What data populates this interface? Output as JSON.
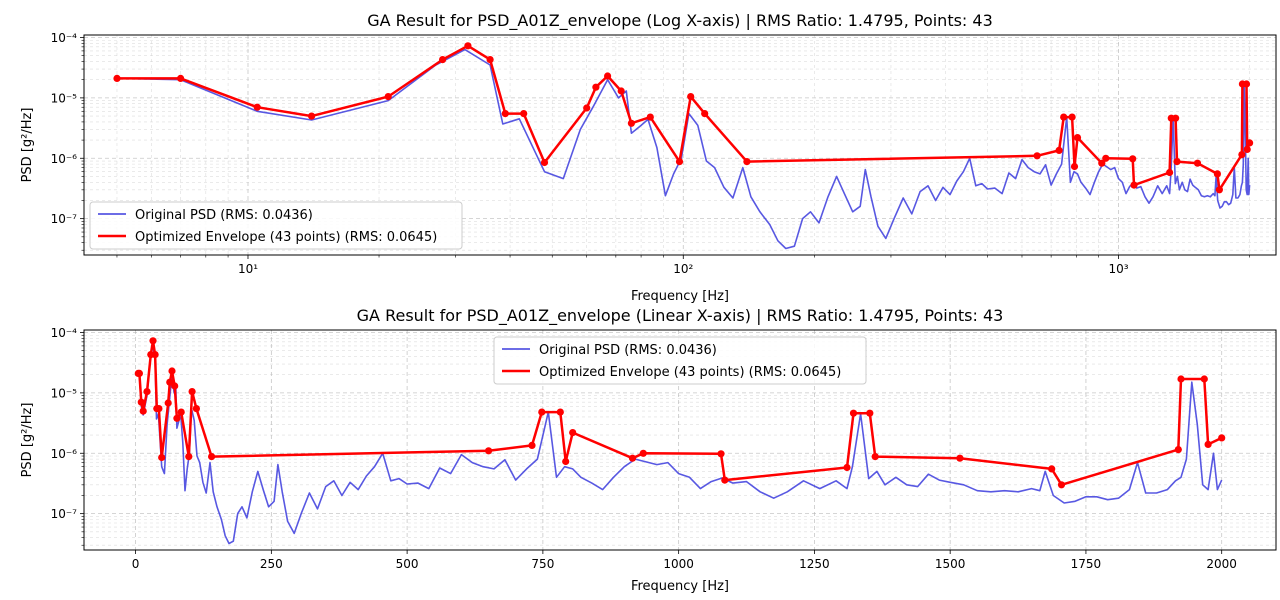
{
  "chart_data": [
    {
      "type": "line",
      "title": "GA Result for PSD_A01Z_envelope (Log X-axis) | RMS Ratio: 1.4795, Points: 43",
      "xlabel": "Frequency [Hz]",
      "ylabel": "PSD [g²/Hz]",
      "xscale": "log",
      "yscale": "log",
      "xlim": [
        4.2,
        2300
      ],
      "ylim": [
        2.5e-08,
        0.00011
      ],
      "x_tick_labels": [
        {
          "value": 10,
          "label": "10¹"
        },
        {
          "value": 100,
          "label": "10²"
        },
        {
          "value": 1000,
          "label": "10³"
        }
      ],
      "y_tick_labels": [
        {
          "value": 1e-07,
          "label": "10⁻⁷"
        },
        {
          "value": 1e-06,
          "label": "10⁻⁶"
        },
        {
          "value": 1e-05,
          "label": "10⁻⁵"
        },
        {
          "value": 0.0001,
          "label": "10⁻⁴"
        }
      ],
      "grid": true,
      "legend_position": "lower-left",
      "series": [
        {
          "name": "Original PSD (RMS: 0.0436)",
          "color": "#3b3bdd",
          "ref": "original_psd"
        },
        {
          "name": "Optimized Envelope (43 points) (RMS: 0.0645)",
          "color": "#ff0000",
          "ref": "envelope",
          "markers": true
        }
      ]
    },
    {
      "type": "line",
      "title": "GA Result for PSD_A01Z_envelope (Linear X-axis) | RMS Ratio: 1.4795, Points: 43",
      "xlabel": "Frequency [Hz]",
      "ylabel": "PSD [g²/Hz]",
      "xscale": "linear",
      "yscale": "log",
      "xlim": [
        -95,
        2100
      ],
      "ylim": [
        2.5e-08,
        0.00011
      ],
      "x_tick_labels": [
        {
          "value": 0,
          "label": "0"
        },
        {
          "value": 250,
          "label": "250"
        },
        {
          "value": 500,
          "label": "500"
        },
        {
          "value": 750,
          "label": "750"
        },
        {
          "value": 1000,
          "label": "1000"
        },
        {
          "value": 1250,
          "label": "1250"
        },
        {
          "value": 1500,
          "label": "1500"
        },
        {
          "value": 1750,
          "label": "1750"
        },
        {
          "value": 2000,
          "label": "2000"
        }
      ],
      "y_tick_labels": [
        {
          "value": 1e-07,
          "label": "10⁻⁷"
        },
        {
          "value": 1e-06,
          "label": "10⁻⁶"
        },
        {
          "value": 1e-05,
          "label": "10⁻⁵"
        },
        {
          "value": 0.0001,
          "label": "10⁻⁴"
        }
      ],
      "grid": true,
      "legend_position": "upper-center",
      "series": [
        {
          "name": "Original PSD (RMS: 0.0436)",
          "color": "#3b3bdd",
          "ref": "original_psd"
        },
        {
          "name": "Optimized Envelope (43 points) (RMS: 0.0645)",
          "color": "#ff0000",
          "ref": "envelope",
          "markers": true
        }
      ]
    }
  ],
  "original_psd": [
    [
      5,
      2.1e-05
    ],
    [
      7,
      2e-05
    ],
    [
      10.5,
      6e-06
    ],
    [
      14,
      4.3e-06
    ],
    [
      21,
      9e-06
    ],
    [
      27,
      3.5e-05
    ],
    [
      31.5,
      6.3e-05
    ],
    [
      36,
      3.5e-05
    ],
    [
      38.5,
      3.7e-06
    ],
    [
      42,
      4.5e-06
    ],
    [
      48,
      6e-07
    ],
    [
      53,
      4.6e-07
    ],
    [
      58,
      3e-06
    ],
    [
      62,
      7e-06
    ],
    [
      67,
      2e-05
    ],
    [
      71,
      1e-05
    ],
    [
      74,
      1.3e-05
    ],
    [
      76,
      2.6e-06
    ],
    [
      80,
      3.5e-06
    ],
    [
      83,
      4.4e-06
    ],
    [
      87,
      1.5e-06
    ],
    [
      91,
      2.4e-07
    ],
    [
      95,
      5.5e-07
    ],
    [
      99,
      1e-06
    ],
    [
      103,
      5.5e-06
    ],
    [
      108,
      3.5e-06
    ],
    [
      113,
      9e-07
    ],
    [
      118,
      7e-07
    ],
    [
      124,
      3.3e-07
    ],
    [
      130,
      2.2e-07
    ],
    [
      137,
      7e-07
    ],
    [
      143,
      2.3e-07
    ],
    [
      150,
      1.3e-07
    ],
    [
      158,
      8e-08
    ],
    [
      165,
      4.3e-08
    ],
    [
      172,
      3.2e-08
    ],
    [
      180,
      3.5e-08
    ],
    [
      188,
      1e-07
    ],
    [
      196,
      1.3e-07
    ],
    [
      205,
      8.5e-08
    ],
    [
      215,
      2.3e-07
    ],
    [
      225,
      5e-07
    ],
    [
      235,
      2.5e-07
    ],
    [
      245,
      1.3e-07
    ],
    [
      255,
      1.6e-07
    ],
    [
      262,
      6.5e-07
    ],
    [
      270,
      2.3e-07
    ],
    [
      280,
      7.5e-08
    ],
    [
      292,
      4.7e-08
    ],
    [
      305,
      1e-07
    ],
    [
      320,
      2.2e-07
    ],
    [
      335,
      1.2e-07
    ],
    [
      350,
      2.8e-07
    ],
    [
      365,
      3.5e-07
    ],
    [
      380,
      2e-07
    ],
    [
      395,
      3.3e-07
    ],
    [
      410,
      2.5e-07
    ],
    [
      425,
      4.2e-07
    ],
    [
      440,
      6e-07
    ],
    [
      455,
      1e-06
    ],
    [
      470,
      3.5e-07
    ],
    [
      485,
      3.8e-07
    ],
    [
      500,
      3.1e-07
    ],
    [
      520,
      3.2e-07
    ],
    [
      540,
      2.6e-07
    ],
    [
      560,
      5.7e-07
    ],
    [
      580,
      4.6e-07
    ],
    [
      600,
      9.5e-07
    ],
    [
      620,
      7e-07
    ],
    [
      640,
      6e-07
    ],
    [
      660,
      5.5e-07
    ],
    [
      680,
      7.8e-07
    ],
    [
      700,
      3.6e-07
    ],
    [
      720,
      5.5e-07
    ],
    [
      740,
      8e-07
    ],
    [
      760,
      4.8e-06
    ],
    [
      775,
      4e-07
    ],
    [
      790,
      6e-07
    ],
    [
      805,
      5.5e-07
    ],
    [
      820,
      4e-07
    ],
    [
      840,
      3.2e-07
    ],
    [
      860,
      2.5e-07
    ],
    [
      880,
      4e-07
    ],
    [
      900,
      6e-07
    ],
    [
      920,
      8e-07
    ],
    [
      940,
      7.2e-07
    ],
    [
      960,
      6.5e-07
    ],
    [
      980,
      7e-07
    ],
    [
      1000,
      4.6e-07
    ],
    [
      1020,
      4e-07
    ],
    [
      1040,
      2.6e-07
    ],
    [
      1060,
      3.4e-07
    ],
    [
      1080,
      3.9e-07
    ],
    [
      1100,
      3.2e-07
    ],
    [
      1125,
      3.4e-07
    ],
    [
      1150,
      2.3e-07
    ],
    [
      1175,
      1.8e-07
    ],
    [
      1200,
      2.3e-07
    ],
    [
      1230,
      3.5e-07
    ],
    [
      1260,
      2.6e-07
    ],
    [
      1290,
      3.5e-07
    ],
    [
      1310,
      2.6e-07
    ],
    [
      1320,
      6e-07
    ],
    [
      1335,
      4.5e-06
    ],
    [
      1350,
      3.8e-07
    ],
    [
      1365,
      5e-07
    ],
    [
      1380,
      3e-07
    ],
    [
      1400,
      4e-07
    ],
    [
      1420,
      3e-07
    ],
    [
      1440,
      2.8e-07
    ],
    [
      1460,
      4.5e-07
    ],
    [
      1480,
      3.6e-07
    ],
    [
      1500,
      3.3e-07
    ],
    [
      1525,
      3e-07
    ],
    [
      1550,
      2.4e-07
    ],
    [
      1575,
      2.3e-07
    ],
    [
      1600,
      2.4e-07
    ],
    [
      1625,
      2.3e-07
    ],
    [
      1650,
      2.6e-07
    ],
    [
      1665,
      2.4e-07
    ],
    [
      1675,
      5e-07
    ],
    [
      1690,
      2e-07
    ],
    [
      1710,
      1.5e-07
    ],
    [
      1730,
      1.6e-07
    ],
    [
      1750,
      1.9e-07
    ],
    [
      1770,
      1.9e-07
    ],
    [
      1790,
      1.7e-07
    ],
    [
      1810,
      1.8e-07
    ],
    [
      1830,
      2.5e-07
    ],
    [
      1845,
      7e-07
    ],
    [
      1860,
      2.2e-07
    ],
    [
      1880,
      2.2e-07
    ],
    [
      1900,
      2.5e-07
    ],
    [
      1915,
      3.5e-07
    ],
    [
      1925,
      4e-07
    ],
    [
      1935,
      8e-07
    ],
    [
      1945,
      1.5e-05
    ],
    [
      1955,
      3e-06
    ],
    [
      1965,
      3e-07
    ],
    [
      1975,
      2.5e-07
    ],
    [
      1985,
      1e-06
    ],
    [
      1992,
      2.5e-07
    ],
    [
      2000,
      3.6e-07
    ]
  ],
  "envelope": [
    [
      5,
      2.1e-05
    ],
    [
      7,
      2.1e-05
    ],
    [
      10.5,
      7e-06
    ],
    [
      14,
      5e-06
    ],
    [
      21,
      1.05e-05
    ],
    [
      28,
      4.3e-05
    ],
    [
      32,
      7.3e-05
    ],
    [
      36,
      4.3e-05
    ],
    [
      39,
      5.5e-06
    ],
    [
      43,
      5.5e-06
    ],
    [
      48,
      8.5e-07
    ],
    [
      60,
      6.8e-06
    ],
    [
      63,
      1.5e-05
    ],
    [
      67,
      2.3e-05
    ],
    [
      72,
      1.3e-05
    ],
    [
      76,
      3.8e-06
    ],
    [
      84,
      4.8e-06
    ],
    [
      98,
      8.8e-07
    ],
    [
      104,
      1.05e-05
    ],
    [
      112,
      5.5e-06
    ],
    [
      140,
      8.8e-07
    ],
    [
      650,
      1.1e-06
    ],
    [
      730,
      1.35e-06
    ],
    [
      748,
      4.8e-06
    ],
    [
      782,
      4.8e-06
    ],
    [
      792,
      7.3e-07
    ],
    [
      805,
      2.2e-06
    ],
    [
      915,
      8.3e-07
    ],
    [
      935,
      1e-06
    ],
    [
      1078,
      9.8e-07
    ],
    [
      1085,
      3.6e-07
    ],
    [
      1310,
      5.8e-07
    ],
    [
      1322,
      4.6e-06
    ],
    [
      1352,
      4.6e-06
    ],
    [
      1362,
      8.8e-07
    ],
    [
      1518,
      8.3e-07
    ],
    [
      1687,
      5.5e-07
    ],
    [
      1705,
      3e-07
    ],
    [
      1920,
      1.15e-06
    ],
    [
      1925,
      1.7e-05
    ],
    [
      1968,
      1.7e-05
    ],
    [
      1975,
      1.4e-06
    ],
    [
      2000,
      1.8e-06
    ]
  ]
}
